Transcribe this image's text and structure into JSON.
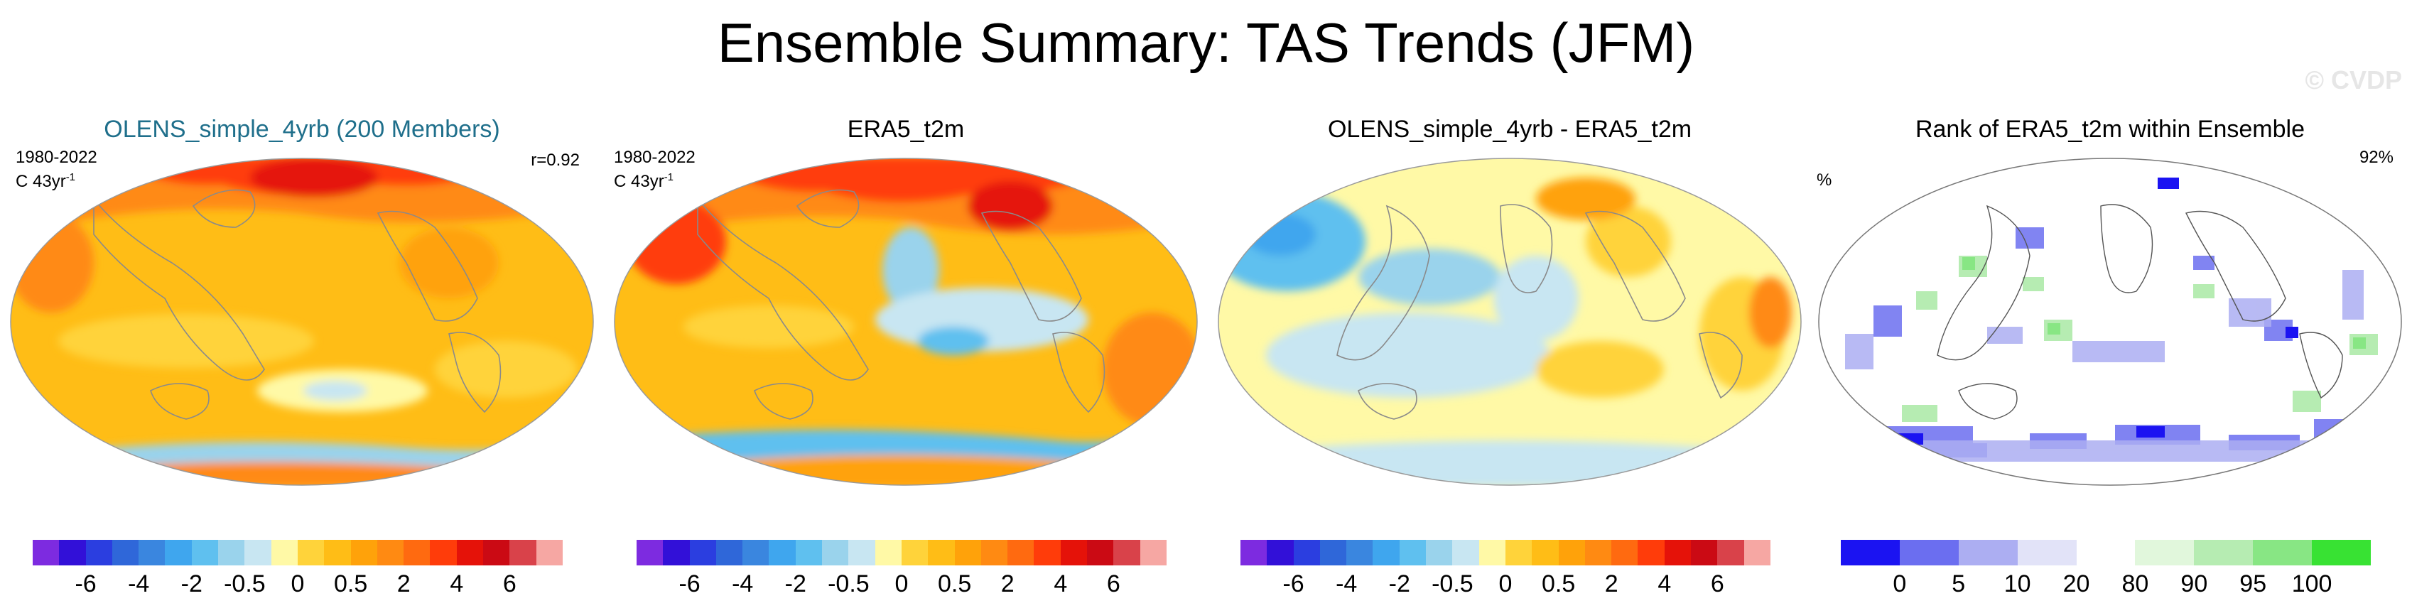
{
  "header": {
    "title": "Ensemble Summary: TAS Trends (JFM)",
    "watermark": "© CVDP"
  },
  "panels": [
    {
      "title": "OLENS_simple_4yrb (200 Members)",
      "period": "1980-2022",
      "units": "C 43yr",
      "units_sup": "-1",
      "right_stat": "r=0.92"
    },
    {
      "title": "ERA5_t2m",
      "period": "1980-2022",
      "units": "C 43yr",
      "units_sup": "-1"
    },
    {
      "title": "OLENS_simple_4yrb - ERA5_t2m"
    },
    {
      "title": "Rank of ERA5_t2m within Ensemble",
      "left_label": "%",
      "right_stat": "92%"
    }
  ],
  "colorbars": {
    "trend": {
      "colors": [
        "#7d2be0",
        "#3210d8",
        "#2b3ee0",
        "#2f67d9",
        "#3a86df",
        "#3fa6ee",
        "#5fc0ef",
        "#9ad3ec",
        "#c8e6f2",
        "#fff9a6",
        "#ffd33a",
        "#ffbd16",
        "#ffa20a",
        "#ff8a12",
        "#ff6a10",
        "#ff3c0a",
        "#e51209",
        "#cb0a14",
        "#d9424a",
        "#f6a7a3"
      ],
      "ticks": [
        "-6",
        "-4",
        "-2",
        "-0.5",
        "0",
        "0.5",
        "2",
        "4",
        "6"
      ]
    },
    "rank": {
      "colors": [
        "#1b13f2",
        "#6b6ef0",
        "#acaef2",
        "#e2e3f8",
        "#ffffff",
        "#e1f7dc",
        "#b6ecb2",
        "#88e684",
        "#38e233"
      ],
      "ticks": [
        "0",
        "5",
        "10",
        "20",
        "80",
        "90",
        "95",
        "100"
      ]
    }
  }
}
